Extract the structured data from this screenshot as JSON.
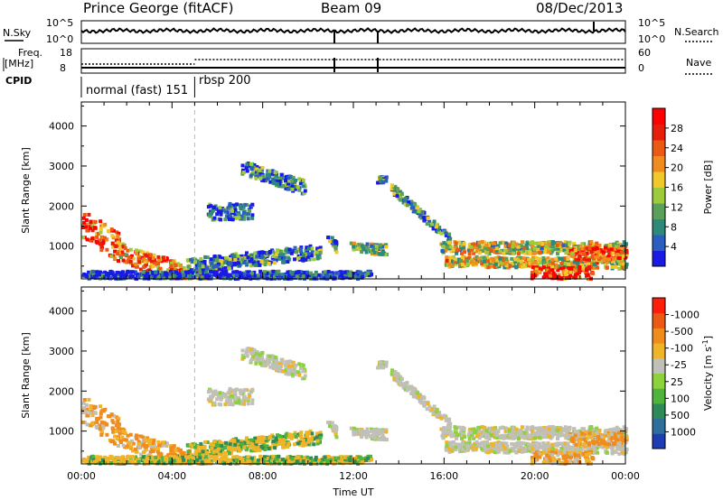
{
  "header": {
    "station": "Prince George (fitACF)",
    "beam": "Beam 09",
    "date": "08/Dec/2013"
  },
  "strip_panels": {
    "nsky_label": "N.Sky",
    "nsky_ticks": [
      "10^5",
      "10^0"
    ],
    "nsearch_label": "N.Search",
    "nsearch_ticks": [
      "10^5",
      "10^0"
    ],
    "freq_label": "Freq.",
    "freq_unit": "[MHz]",
    "freq_ticks": [
      "18",
      "8"
    ],
    "nave_label": "Nave",
    "nave_ticks": [
      "60",
      "0"
    ],
    "cpid_label": "CPID",
    "cpid_modes": [
      "normal (fast) 151",
      "rbsp 200"
    ]
  },
  "chart_data": [
    {
      "type": "heatmap",
      "panel": "power",
      "ylabel": "Slant Range [km]",
      "xlabel": "",
      "y_ticks": [
        1000,
        2000,
        3000,
        4000
      ],
      "ylim": [
        180,
        4600
      ],
      "xlim_hours": [
        0,
        24
      ],
      "colorbar_label": "Power [dB]",
      "colorbar_ticks": [
        "4",
        "8",
        "12",
        "16",
        "20",
        "24",
        "28"
      ],
      "colorbar_colors": [
        "#1a1ae6",
        "#2a5fc0",
        "#2d8a7a",
        "#5aa05a",
        "#9ecb3c",
        "#f0c82a",
        "#f08c1e",
        "#ea5a14",
        "#e61e0a",
        "#ff0000"
      ],
      "mode_change_hour": 5.0
    },
    {
      "type": "heatmap",
      "panel": "velocity",
      "ylabel": "Slant Range [km]",
      "xlabel": "Time UT",
      "y_ticks": [
        1000,
        2000,
        3000,
        4000
      ],
      "ylim": [
        180,
        4600
      ],
      "xlim_hours": [
        0,
        24
      ],
      "x_tick_labels": [
        "00:00",
        "04:00",
        "08:00",
        "12:00",
        "16:00",
        "20:00",
        "00:00"
      ],
      "colorbar_label": "Velocity [m s^-1]",
      "colorbar_ticks": [
        "1000",
        "500",
        "100",
        "25",
        "-25",
        "-100",
        "-500",
        "-1000"
      ],
      "colorbar_colors": [
        "#1e3cb4",
        "#2d6e9c",
        "#2e8b57",
        "#50b43c",
        "#8cd23c",
        "#c0c0b8",
        "#f0b428",
        "#f08c1e",
        "#eb5a14",
        "#ff1e0a"
      ],
      "mode_change_hour": 5.0
    }
  ]
}
